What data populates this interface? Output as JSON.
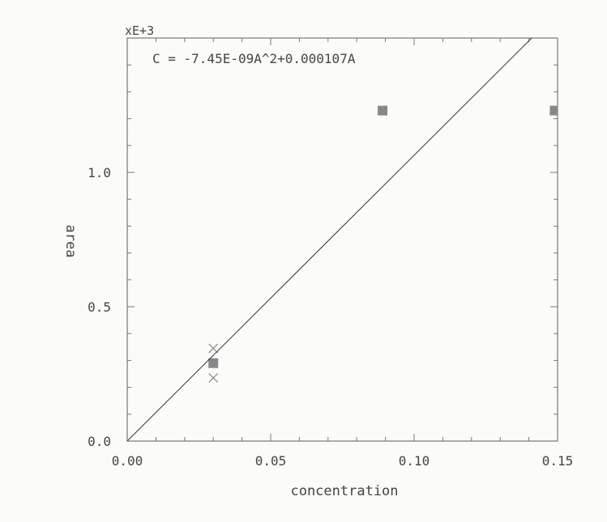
{
  "chart_data": {
    "type": "scatter",
    "title": "",
    "equation": "C = -7.45E-09A^2+0.000107A",
    "y_multiplier_label": "xE+3",
    "xlabel": "concentration",
    "ylabel": "area",
    "xlim": [
      0.0,
      0.15
    ],
    "ylim": [
      0.0,
      1.5
    ],
    "x_ticks": [
      0.0,
      0.05,
      0.1,
      0.15
    ],
    "x_tick_labels": [
      "0.00",
      "0.05",
      "0.10",
      "0.15"
    ],
    "y_ticks": [
      0.0,
      0.5,
      1.0
    ],
    "y_tick_labels": [
      "0.0",
      "0.5",
      "1.0"
    ],
    "grid": false,
    "series": [
      {
        "marker": "square",
        "color": "#888888",
        "points": [
          {
            "x": 0.03,
            "y": 0.29
          },
          {
            "x": 0.089,
            "y": 1.23
          },
          {
            "x": 0.149,
            "y": 1.23
          }
        ]
      },
      {
        "marker": "x",
        "color": "#888888",
        "points": [
          {
            "x": 0.03,
            "y": 0.345
          },
          {
            "x": 0.03,
            "y": 0.235
          },
          {
            "x": 0.089,
            "y": 1.23
          },
          {
            "x": 0.149,
            "y": 1.23
          }
        ]
      },
      {
        "marker": "line",
        "color": "#333333",
        "points": [
          {
            "x": 0.0,
            "y": 0.0
          },
          {
            "x": 0.141,
            "y": 1.5
          }
        ]
      }
    ]
  }
}
